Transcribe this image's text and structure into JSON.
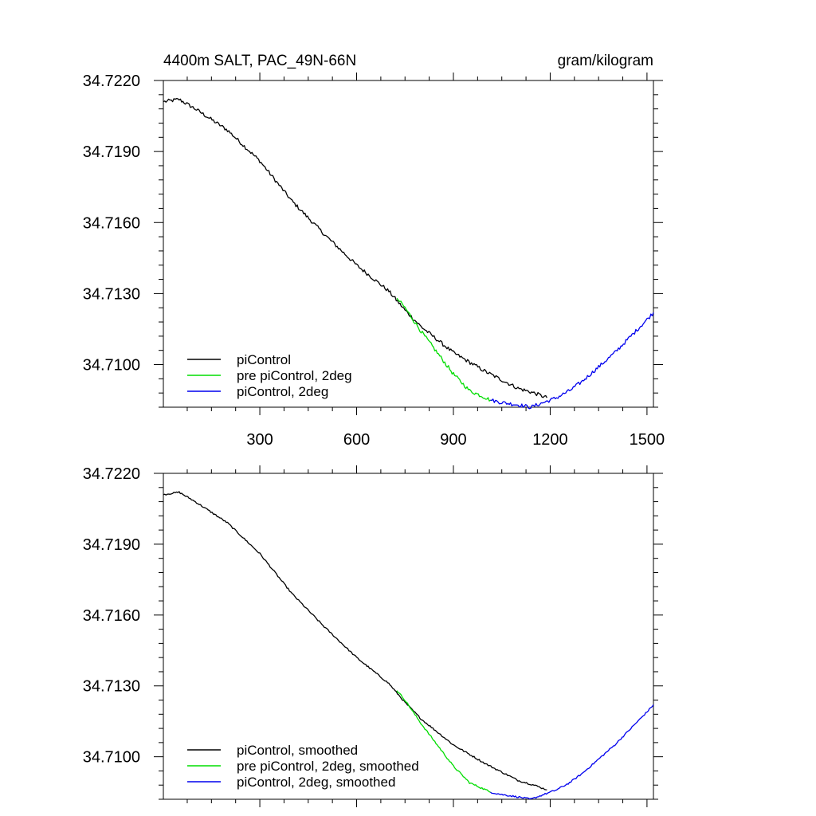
{
  "chart_data": [
    {
      "type": "line",
      "title": "4400m SALT, PAC_49N-66N",
      "units": "gram/kilogram",
      "xlabel": "",
      "ylabel": "",
      "xlim": [
        1,
        1520
      ],
      "ylim": [
        34.7082,
        34.722
      ],
      "x_ticks": [
        300,
        600,
        900,
        1200,
        1500
      ],
      "x_tick_labels": [
        "300",
        "600",
        "900",
        "1200",
        "1500"
      ],
      "y_ticks": [
        34.722,
        34.719,
        34.716,
        34.713,
        34.71
      ],
      "y_tick_labels": [
        "34.7220",
        "34.7190",
        "34.7160",
        "34.7130",
        "34.7100"
      ],
      "legend_position": "bottom-left",
      "series": [
        {
          "name": "piControl",
          "color": "#000000",
          "x": [
            1,
            50,
            100,
            200,
            300,
            400,
            500,
            600,
            700,
            750,
            800,
            900,
            1000,
            1100,
            1150,
            1190
          ],
          "y": [
            34.7211,
            34.7212,
            34.7208,
            34.7199,
            34.7186,
            34.7169,
            34.7155,
            34.7142,
            34.7131,
            34.7123,
            34.7116,
            34.7105,
            34.7097,
            34.709,
            34.7088,
            34.7086
          ]
        },
        {
          "name": "pre piControl, 2deg",
          "color": "#00dd00",
          "x": [
            725,
            750,
            800,
            850,
            900,
            950,
            1000,
            1015
          ],
          "y": [
            34.7128,
            34.7124,
            34.7114,
            34.7105,
            34.7096,
            34.7089,
            34.7086,
            34.7085
          ]
        },
        {
          "name": "piControl, 2deg",
          "color": "#0000ee",
          "x": [
            1015,
            1050,
            1100,
            1140,
            1180,
            1220,
            1260,
            1300,
            1350,
            1400,
            1450,
            1500,
            1520
          ],
          "y": [
            34.7085,
            34.7084,
            34.7083,
            34.7082,
            34.7084,
            34.7086,
            34.7089,
            34.7093,
            34.7099,
            34.7105,
            34.7112,
            34.7119,
            34.7122
          ]
        }
      ]
    },
    {
      "type": "line",
      "title": "",
      "xlabel": "",
      "ylabel": "",
      "xlim": [
        1,
        1520
      ],
      "ylim": [
        34.7082,
        34.722
      ],
      "x_ticks": [
        300,
        600,
        900,
        1200,
        1500
      ],
      "x_tick_labels": [],
      "y_ticks": [
        34.722,
        34.719,
        34.716,
        34.713,
        34.71
      ],
      "y_tick_labels": [
        "34.7220",
        "34.7190",
        "34.7160",
        "34.7130",
        "34.7100"
      ],
      "legend_position": "bottom-left",
      "series": [
        {
          "name": "piControl, smoothed",
          "color": "#000000",
          "x": [
            1,
            50,
            100,
            200,
            300,
            400,
            500,
            600,
            700,
            750,
            800,
            900,
            1000,
            1100,
            1150,
            1190
          ],
          "y": [
            34.7211,
            34.7212,
            34.7208,
            34.7199,
            34.7186,
            34.7169,
            34.7155,
            34.7142,
            34.7131,
            34.7123,
            34.7116,
            34.7105,
            34.7097,
            34.709,
            34.7088,
            34.7086
          ]
        },
        {
          "name": "pre piControl, 2deg, smoothed",
          "color": "#00dd00",
          "x": [
            725,
            750,
            800,
            850,
            900,
            950,
            1000,
            1015
          ],
          "y": [
            34.7128,
            34.7124,
            34.7114,
            34.7105,
            34.7096,
            34.7089,
            34.7086,
            34.7085
          ]
        },
        {
          "name": "piControl, 2deg, smoothed",
          "color": "#0000ee",
          "x": [
            1015,
            1050,
            1100,
            1140,
            1180,
            1220,
            1260,
            1300,
            1350,
            1400,
            1450,
            1500,
            1520
          ],
          "y": [
            34.7085,
            34.7084,
            34.7083,
            34.7082,
            34.7084,
            34.7086,
            34.7089,
            34.7093,
            34.7099,
            34.7105,
            34.7112,
            34.7119,
            34.7122
          ]
        }
      ]
    }
  ]
}
